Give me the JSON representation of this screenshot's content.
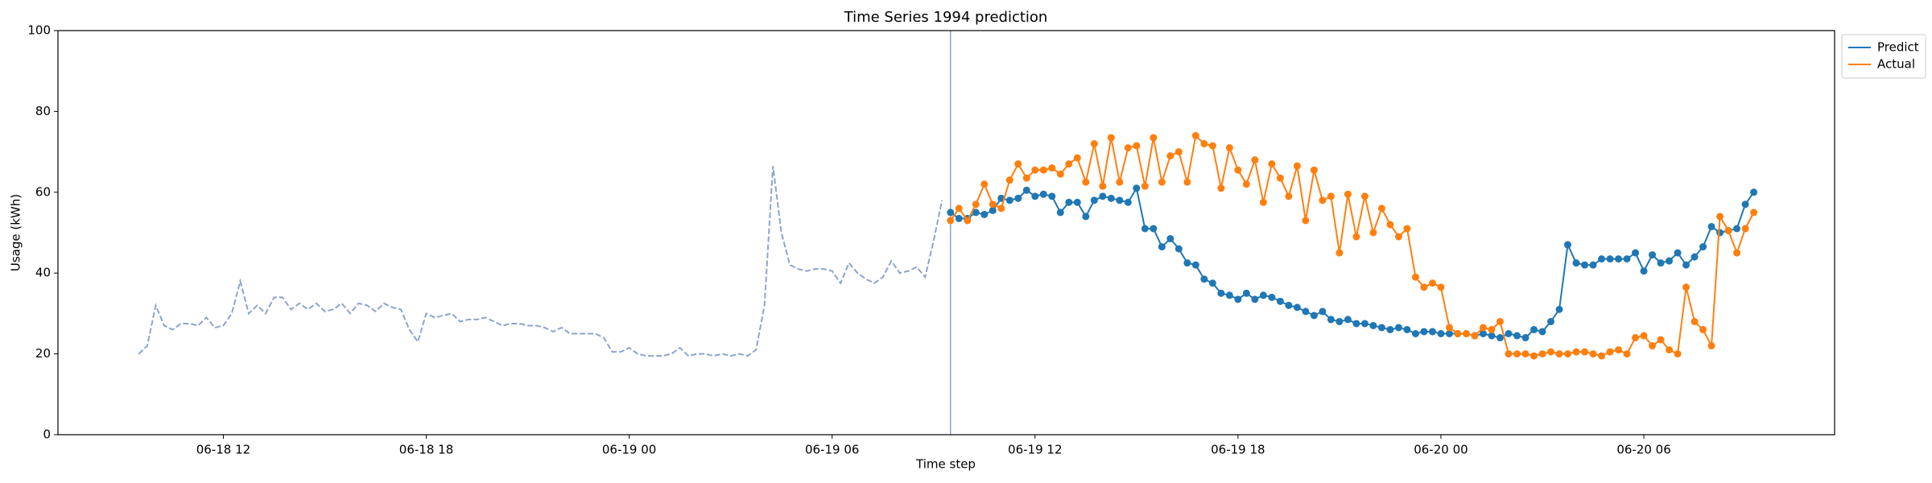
{
  "chart_data": {
    "type": "line",
    "title": "Time Series 1994 prediction",
    "xlabel": "Time step",
    "ylabel": "Usage (kWh)",
    "x": [
      33.5,
      33.75,
      34,
      34.25,
      34.5,
      34.75,
      35,
      35.25,
      35.5,
      35.75,
      36,
      36.25,
      36.5,
      36.75,
      37,
      37.25,
      37.5,
      37.75,
      38,
      38.25,
      38.5,
      38.75,
      39,
      39.25,
      39.5,
      39.75,
      40,
      40.25,
      40.5,
      40.75,
      41,
      41.25,
      41.5,
      41.75,
      42,
      42.25,
      42.5,
      42.75,
      43,
      43.25,
      43.5,
      43.75,
      44,
      44.25,
      44.5,
      44.75,
      45,
      45.25,
      45.5,
      45.75,
      46,
      46.25,
      46.5,
      46.75,
      47,
      47.25,
      47.5,
      47.75,
      48,
      48.25,
      48.5,
      48.75,
      49,
      49.25,
      49.5,
      49.75,
      50,
      50.25,
      50.5,
      50.75,
      51,
      51.25,
      51.5,
      51.75,
      52,
      52.25,
      52.5,
      52.75,
      53,
      53.25,
      53.5,
      53.75,
      54,
      54.25,
      54.5,
      54.75,
      55,
      55.25,
      55.5,
      55.75,
      56,
      56.25,
      56.5,
      56.75,
      57,
      57.25
    ],
    "series": [
      {
        "color": "#8ea4cc",
        "linestyle": "dashed",
        "x": [
          9.5,
          9.75,
          10,
          10.25,
          10.5,
          10.75,
          11,
          11.25,
          11.5,
          11.75,
          12,
          12.25,
          12.5,
          12.75,
          13,
          13.25,
          13.5,
          13.75,
          14,
          14.25,
          14.5,
          14.75,
          15,
          15.25,
          15.5,
          15.75,
          16,
          16.25,
          16.5,
          16.75,
          17,
          17.25,
          17.5,
          17.75,
          18,
          18.25,
          18.5,
          18.75,
          19,
          19.25,
          19.5,
          19.75,
          20,
          20.25,
          20.5,
          20.75,
          21,
          21.25,
          21.5,
          21.75,
          22,
          22.25,
          22.5,
          22.75,
          23,
          23.25,
          23.5,
          23.75,
          24,
          24.25,
          24.5,
          24.75,
          25,
          25.25,
          25.5,
          25.75,
          26,
          26.25,
          26.5,
          26.75,
          27,
          27.25,
          27.5,
          27.75,
          28,
          28.25,
          28.5,
          28.75,
          29,
          29.25,
          29.5,
          29.75,
          30,
          30.25,
          30.5,
          30.75,
          31,
          31.25,
          31.5,
          31.75,
          32,
          32.25,
          32.5,
          32.75,
          33,
          33.25
        ],
        "values": [
          20,
          22,
          32,
          27,
          26,
          27.5,
          27.5,
          27,
          29,
          26.5,
          27,
          30,
          38,
          30,
          32,
          30,
          34,
          34,
          31,
          32.5,
          31,
          32.5,
          30.5,
          31,
          32.5,
          30,
          32.5,
          32,
          30.5,
          32.5,
          31.5,
          31,
          26,
          23,
          30,
          29,
          29.5,
          30,
          28,
          28.5,
          28.5,
          29,
          28,
          27,
          27.5,
          27.5,
          27,
          27,
          26.5,
          25.5,
          26.5,
          25,
          25,
          25,
          25,
          24,
          20.5,
          20.5,
          21.5,
          20,
          19.5,
          19.5,
          19.5,
          20,
          21.5,
          19.5,
          20,
          20,
          19.5,
          20,
          19.5,
          20,
          19.5,
          21,
          32,
          66.5,
          50,
          42,
          41,
          40.5,
          41,
          41,
          40.5,
          37.5,
          42.5,
          40,
          38.5,
          37.5,
          39,
          43,
          40,
          40.5,
          41.5,
          39,
          48,
          58
        ]
      },
      {
        "name": "Predict",
        "color": "#1f77b4",
        "marker": "o",
        "values": [
          55,
          53.5,
          53.5,
          55,
          54.5,
          55.5,
          58.5,
          58,
          58.5,
          60.5,
          59,
          59.5,
          59,
          55,
          57.5,
          57.5,
          54,
          58,
          59,
          58.5,
          58,
          57.5,
          61,
          51,
          51,
          46.5,
          48.5,
          46,
          42.5,
          42,
          38.5,
          37.5,
          35,
          34.5,
          33.5,
          35,
          33.5,
          34.5,
          34,
          33,
          32,
          31.5,
          30.5,
          29.5,
          30.5,
          28.5,
          28,
          28.5,
          27.5,
          27.5,
          27,
          26.5,
          26,
          26.5,
          26,
          25,
          25.5,
          25.5,
          25,
          25,
          25,
          25,
          24.5,
          25,
          24.5,
          24,
          25,
          24.5,
          24,
          26,
          25.5,
          28,
          31,
          47,
          42.5,
          42,
          42,
          43.5,
          43.5,
          43.5,
          43.5,
          45,
          40.5,
          44.5,
          42.5,
          43,
          45,
          42,
          44,
          46.5,
          51.5,
          50,
          50.5,
          51,
          57,
          60
        ]
      },
      {
        "name": "Actual",
        "color": "#ff7f0e",
        "marker": "o",
        "values": [
          53,
          56,
          53,
          57,
          62,
          57,
          56,
          63,
          67,
          63.5,
          65.5,
          65.5,
          66,
          64.5,
          67,
          68.5,
          62.5,
          72,
          61.5,
          73.5,
          62.5,
          71,
          71.5,
          61.5,
          73.5,
          62.5,
          69,
          70,
          62.5,
          74,
          72,
          71.5,
          61,
          71,
          65.5,
          62,
          68,
          57.5,
          67,
          63.5,
          59,
          66.5,
          53,
          65.5,
          58,
          59,
          45,
          59.5,
          49,
          59,
          50,
          56,
          52,
          49,
          51,
          39,
          36.5,
          37.5,
          36.5,
          26.5,
          25,
          25,
          24.5,
          26.5,
          26,
          28,
          20,
          20,
          20,
          19.5,
          20,
          20.5,
          20,
          20,
          20.5,
          20.5,
          20,
          19.5,
          20.5,
          21,
          20,
          24,
          24.5,
          22,
          23.5,
          21,
          20,
          36.5,
          28,
          26,
          22,
          54,
          50.5,
          45,
          51,
          55
        ]
      }
    ],
    "vline": 33.5,
    "vline_color": "#8ea4cc",
    "xlim": [
      7.11,
      59.64
    ],
    "xticks": [
      {
        "value": 12,
        "label": "06-18 12"
      },
      {
        "value": 18,
        "label": "06-18 18"
      },
      {
        "value": 24,
        "label": "06-19 00"
      },
      {
        "value": 30,
        "label": "06-19 06"
      },
      {
        "value": 36,
        "label": "06-19 12"
      },
      {
        "value": 42,
        "label": "06-19 18"
      },
      {
        "value": 48,
        "label": "06-20 00"
      },
      {
        "value": 54,
        "label": "06-20 06"
      }
    ],
    "ylim": [
      0,
      100
    ],
    "yticks": [
      0,
      20,
      40,
      60,
      80,
      100
    ],
    "legend": "upper right outside"
  }
}
